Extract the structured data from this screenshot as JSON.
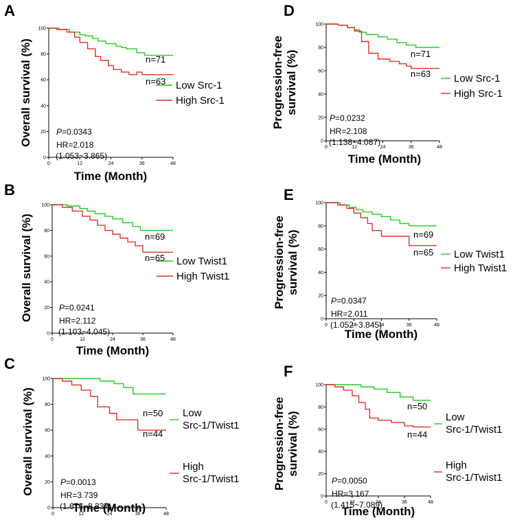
{
  "figure": {
    "colors": {
      "low": "#22cc22",
      "high": "#e0302a",
      "axis": "#000000"
    }
  },
  "chart_data": [
    {
      "id": "A",
      "type": "line",
      "letter": "A",
      "ylabel_lines": [
        "Overall survival (%)"
      ],
      "xlabel": "Time (Month)",
      "xlim": [
        0,
        48
      ],
      "ylim": [
        0,
        100
      ],
      "xticks": [
        "0",
        "12",
        "24",
        "36",
        "48"
      ],
      "yticks": [
        "0",
        "20",
        "40",
        "60",
        "80",
        "100"
      ],
      "series": [
        {
          "name": "Low Src-1",
          "group": "low",
          "legend_lines": [
            "Low Src-1"
          ],
          "n_label": "n=71",
          "x": [
            0,
            4,
            8,
            12,
            14,
            17,
            19,
            22,
            26,
            28,
            30,
            34,
            37,
            40,
            48
          ],
          "y": [
            100,
            99,
            97,
            95,
            94,
            92,
            90,
            88,
            86,
            85,
            84,
            81,
            79,
            79,
            79
          ]
        },
        {
          "name": "High Src-1",
          "group": "high",
          "legend_lines": [
            "High Src-1"
          ],
          "n_label": "n=63",
          "x": [
            0,
            3,
            7,
            10,
            12,
            15,
            18,
            20,
            23,
            25,
            28,
            31,
            34,
            36,
            39,
            48
          ],
          "y": [
            100,
            99,
            97,
            93,
            89,
            84,
            78,
            75,
            71,
            68,
            66,
            64,
            66,
            64,
            64,
            64
          ]
        }
      ],
      "p_label": "P",
      "p_value": "=0.0343",
      "hr": "HR=2.018",
      "ci": "(1.053~3.865)"
    },
    {
      "id": "B",
      "type": "line",
      "letter": "B",
      "ylabel_lines": [
        "Overall survival (%)"
      ],
      "xlabel": "Time (Month)",
      "xlim": [
        0,
        48
      ],
      "ylim": [
        0,
        100
      ],
      "xticks": [
        "0",
        "12",
        "24",
        "36",
        "48"
      ],
      "yticks": [
        "0",
        "20",
        "40",
        "60",
        "80",
        "100"
      ],
      "series": [
        {
          "name": "Low Twist1",
          "group": "low",
          "legend_lines": [
            "Low Twist1"
          ],
          "n_label": "n=69",
          "x": [
            0,
            6,
            11,
            14,
            17,
            21,
            24,
            28,
            32,
            35,
            48
          ],
          "y": [
            100,
            99,
            97,
            95,
            93,
            91,
            89,
            86,
            83,
            80,
            80
          ]
        },
        {
          "name": "High Twist1",
          "group": "high",
          "legend_lines": [
            "High Twist1"
          ],
          "n_label": "n=65",
          "x": [
            0,
            4,
            8,
            12,
            15,
            18,
            21,
            24,
            27,
            30,
            33,
            36,
            48
          ],
          "y": [
            100,
            98,
            95,
            91,
            88,
            84,
            80,
            77,
            74,
            71,
            68,
            63,
            63
          ]
        }
      ],
      "p_label": "P",
      "p_value": "=0.0241",
      "hr": "HR=2.112",
      "ci": "(1.103~4.045)"
    },
    {
      "id": "C",
      "type": "line",
      "letter": "C",
      "ylabel_lines": [
        "Overall survival (%)"
      ],
      "xlabel": "Time (Month)",
      "xlim": [
        0,
        48
      ],
      "ylim": [
        0,
        100
      ],
      "xticks": [
        "0",
        "12",
        "24",
        "36",
        "48"
      ],
      "yticks": [
        "0",
        "20",
        "40",
        "60",
        "80",
        "100"
      ],
      "series": [
        {
          "name": "Low Src-1/Twist1",
          "group": "low",
          "legend_lines": [
            "Low",
            "Src-1/Twist1"
          ],
          "n_label": "n=50",
          "x": [
            0,
            12,
            20,
            26,
            30,
            34,
            48
          ],
          "y": [
            100,
            100,
            98,
            96,
            93,
            88,
            88
          ]
        },
        {
          "name": "High Src-1/Twist1",
          "group": "high",
          "legend_lines": [
            "High",
            "Src-1/Twist1"
          ],
          "n_label": "n=44",
          "x": [
            0,
            4,
            8,
            12,
            16,
            19,
            24,
            27,
            36,
            48
          ],
          "y": [
            100,
            98,
            95,
            91,
            86,
            78,
            73,
            68,
            60,
            60
          ]
        }
      ],
      "p_label": "P",
      "p_value": "=0.0013",
      "hr": "HR=3.739",
      "ci": "(1.676~8.337)"
    },
    {
      "id": "D",
      "type": "line",
      "letter": "D",
      "ylabel_lines": [
        "Progression-free",
        "survival (%)"
      ],
      "xlabel": "Time (Month)",
      "xlim": [
        0,
        48
      ],
      "ylim": [
        0,
        100
      ],
      "xticks": [
        "0",
        "12",
        "24",
        "36",
        "48"
      ],
      "yticks": [
        "0",
        "20",
        "40",
        "60",
        "80",
        "100"
      ],
      "series": [
        {
          "name": "Low Src-1",
          "group": "low",
          "legend_lines": [
            "Low Src-1"
          ],
          "n_label": "n=71",
          "x": [
            0,
            5,
            9,
            12,
            14,
            17,
            22,
            26,
            30,
            34,
            38,
            48
          ],
          "y": [
            100,
            99,
            97,
            95,
            93,
            91,
            89,
            87,
            84,
            82,
            80,
            80
          ]
        },
        {
          "name": "High Src-1",
          "group": "high",
          "legend_lines": [
            "High Src-1"
          ],
          "n_label": "n=63",
          "x": [
            0,
            5,
            9,
            12,
            15,
            18,
            22,
            27,
            31,
            34,
            36,
            48
          ],
          "y": [
            100,
            99,
            97,
            94,
            85,
            75,
            70,
            68,
            66,
            64,
            62,
            62
          ]
        }
      ],
      "p_label": "P",
      "p_value": "=0.0232",
      "hr": "HR=2.108",
      "ci": "(1.138~4.087)"
    },
    {
      "id": "E",
      "type": "line",
      "letter": "E",
      "ylabel_lines": [
        "Progression-free",
        "survival (%)"
      ],
      "xlabel": "Time (Month)",
      "xlim": [
        0,
        48
      ],
      "ylim": [
        0,
        100
      ],
      "xticks": [
        "0",
        "12",
        "24",
        "36",
        "48"
      ],
      "yticks": [
        "0",
        "20",
        "40",
        "60",
        "80",
        "100"
      ],
      "series": [
        {
          "name": "Low Twist1",
          "group": "low",
          "legend_lines": [
            "Low Twist1"
          ],
          "n_label": "n=69",
          "x": [
            0,
            6,
            10,
            13,
            16,
            20,
            24,
            28,
            32,
            36,
            48
          ],
          "y": [
            100,
            98,
            96,
            94,
            92,
            90,
            88,
            85,
            82,
            80,
            80
          ]
        },
        {
          "name": "High Twist1",
          "group": "high",
          "legend_lines": [
            "High Twist1"
          ],
          "n_label": "n=65",
          "x": [
            0,
            5,
            9,
            12,
            15,
            18,
            20,
            24,
            30,
            36,
            48
          ],
          "y": [
            100,
            98,
            95,
            91,
            87,
            82,
            76,
            71,
            71,
            63,
            63
          ]
        }
      ],
      "p_label": "P",
      "p_value": "=0.0347",
      "hr": "HR=2.011",
      "ci": "(1.052~3.845)"
    },
    {
      "id": "F",
      "type": "line",
      "letter": "F",
      "ylabel_lines": [
        "Progression-free",
        "survival (%)"
      ],
      "xlabel": "Time (Month)",
      "xlim": [
        0,
        48
      ],
      "ylim": [
        0,
        100
      ],
      "xticks": [
        "0",
        "12",
        "24",
        "36",
        "48"
      ],
      "yticks": [
        "0",
        "20",
        "40",
        "60",
        "80",
        "100"
      ],
      "series": [
        {
          "name": "Low Src-1/Twist1",
          "group": "low",
          "legend_lines": [
            "Low",
            "Src-1/Twist1"
          ],
          "n_label": "n=50",
          "x": [
            0,
            10,
            16,
            22,
            28,
            34,
            40,
            48
          ],
          "y": [
            100,
            100,
            98,
            96,
            93,
            89,
            86,
            86
          ]
        },
        {
          "name": "High Src-1/Twist1",
          "group": "high",
          "legend_lines": [
            "High",
            "Src-1/Twist1"
          ],
          "n_label": "n=44",
          "x": [
            0,
            4,
            8,
            12,
            15,
            18,
            20,
            24,
            30,
            36,
            40,
            48
          ],
          "y": [
            100,
            98,
            95,
            90,
            84,
            78,
            70,
            68,
            66,
            63,
            62,
            62
          ]
        }
      ],
      "p_label": "P",
      "p_value": "=0.0050",
      "hr": "HR=3.167",
      "ci": "(1.415~7.089)"
    }
  ]
}
